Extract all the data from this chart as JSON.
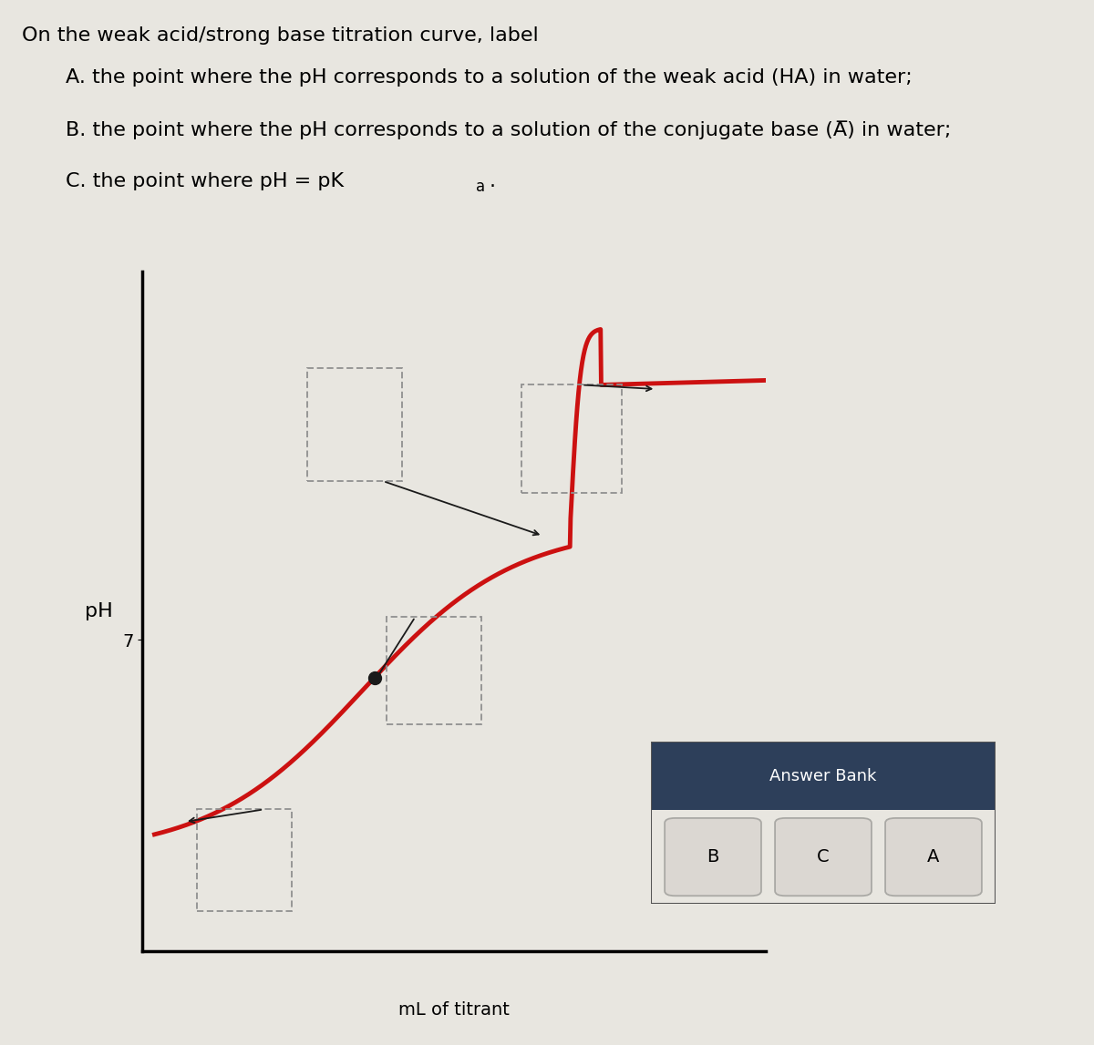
{
  "title_line1": "On the weak acid/strong base titration curve, label",
  "title_A": "A. the point where the pH corresponds to a solution of the weak acid (HA) in water;",
  "title_B_pre": "B. the point where the pH corresponds to a solution of the conjugate base (A",
  "title_B_post": ") in water;",
  "title_C_pre": "C. the point where pH = pK",
  "title_C_sub": "a",
  "title_C_post": ".",
  "ylabel": "pH",
  "xlabel": "mL of titrant",
  "ytick_label": "7",
  "ytick_value": 7,
  "curve_color": "#cc1111",
  "curve_linewidth": 3.5,
  "dot_color": "#1a1a1a",
  "dot_size": 100,
  "background_color": "#e8e6e0",
  "answer_bank_bg": "#2d3f5a",
  "answer_bank_body_bg": "#d0ccc8",
  "answer_bank_title": "Answer Bank",
  "answer_bank_items": [
    "B",
    "C",
    "A"
  ],
  "dashed_box_color": "#909090",
  "arrow_color": "#1a1a1a",
  "text_fontsize": 16,
  "axis_fontsize": 15
}
